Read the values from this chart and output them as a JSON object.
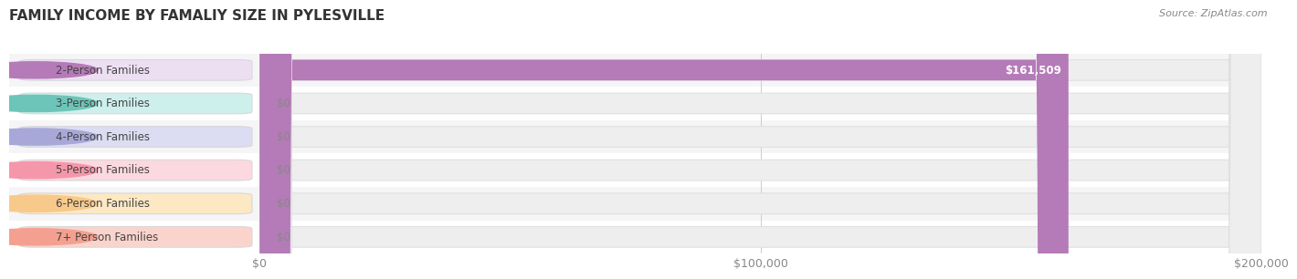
{
  "title": "FAMILY INCOME BY FAMALIY SIZE IN PYLESVILLE",
  "source": "Source: ZipAtlas.com",
  "categories": [
    "2-Person Families",
    "3-Person Families",
    "4-Person Families",
    "5-Person Families",
    "6-Person Families",
    "7+ Person Families"
  ],
  "values": [
    161509,
    0,
    0,
    0,
    0,
    0
  ],
  "bar_colors": [
    "#b57ab8",
    "#6dc4b8",
    "#a8a8d8",
    "#f597aa",
    "#f7c98a",
    "#f4a090"
  ],
  "label_bg_colors": [
    "#eddff2",
    "#cdf0ec",
    "#dcdcf2",
    "#fcd8e0",
    "#fde8c4",
    "#fad4cc"
  ],
  "xlim": [
    0,
    200000
  ],
  "xticks": [
    0,
    100000,
    200000
  ],
  "xtick_labels": [
    "$0",
    "$100,000",
    "$200,000"
  ],
  "bar_height": 0.62,
  "background_color": "#ffffff",
  "row_bg_even": "#f5f5f7",
  "row_bg_odd": "#ffffff",
  "title_fontsize": 11,
  "tick_fontsize": 9,
  "label_fontsize": 8.5,
  "value_fontsize": 8.5
}
